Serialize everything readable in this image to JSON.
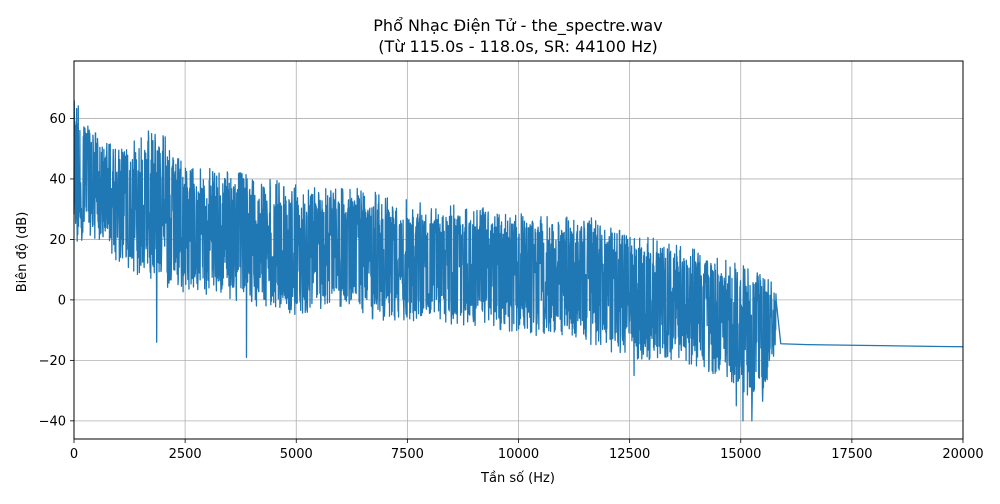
{
  "chart_data": {
    "type": "line",
    "title": "Phổ Nhạc Điện Tử - the_spectre.wav",
    "subtitle": "(Từ 115.0s - 118.0s, SR: 44100 Hz)",
    "xlabel": "Tần số (Hz)",
    "ylabel": "Biên độ (dB)",
    "xlim": [
      0,
      20000
    ],
    "ylim": [
      -46,
      79
    ],
    "xticks": [
      0,
      2500,
      5000,
      7500,
      10000,
      12500,
      15000,
      17500,
      20000
    ],
    "xtick_labels": [
      "0",
      "2500",
      "5000",
      "7500",
      "10000",
      "12500",
      "15000",
      "17500",
      "20000"
    ],
    "yticks": [
      -40,
      -20,
      0,
      20,
      40,
      60
    ],
    "ytick_labels": [
      "−40",
      "−20",
      "0",
      "20",
      "40",
      "60"
    ],
    "grid": true,
    "line_color": "#1f77b4",
    "series": [
      {
        "envelope_upper": {
          "x": [
            0,
            100,
            300,
            500,
            800,
            1200,
            1800,
            2500,
            3500,
            5000,
            6000,
            7000,
            8000,
            9500,
            10500,
            11500,
            12500,
            13500,
            14500,
            15500,
            15800
          ],
          "y": [
            73,
            68,
            60,
            56,
            52,
            50,
            60,
            44,
            43,
            38,
            38,
            35,
            33,
            30,
            28,
            28,
            22,
            19,
            14,
            10,
            5
          ]
        },
        "envelope_lower": {
          "x": [
            0,
            100,
            300,
            500,
            800,
            1200,
            1800,
            2500,
            3500,
            5000,
            6000,
            7000,
            8000,
            9500,
            10500,
            11500,
            12500,
            13500,
            14500,
            15500,
            15800
          ],
          "y": [
            5,
            18,
            22,
            20,
            15,
            10,
            5,
            2,
            0,
            -5,
            -3,
            -8,
            -8,
            -10,
            -12,
            -14,
            -20,
            -20,
            -25,
            -35,
            -15
          ]
        },
        "deep_dips": [
          {
            "x": 1860,
            "y": -14
          },
          {
            "x": 3880,
            "y": -19
          },
          {
            "x": 12600,
            "y": -25
          },
          {
            "x": 14900,
            "y": -35
          },
          {
            "x": 15050,
            "y": -40
          },
          {
            "x": 15250,
            "y": -40
          },
          {
            "x": 15550,
            "y": -27
          }
        ],
        "noise_floor": {
          "x": [
            15900,
            16500,
            17500,
            18500,
            19500,
            20000
          ],
          "y": [
            -14.5,
            -14.8,
            -15.0,
            -15.2,
            -15.4,
            -15.5
          ]
        }
      }
    ]
  }
}
